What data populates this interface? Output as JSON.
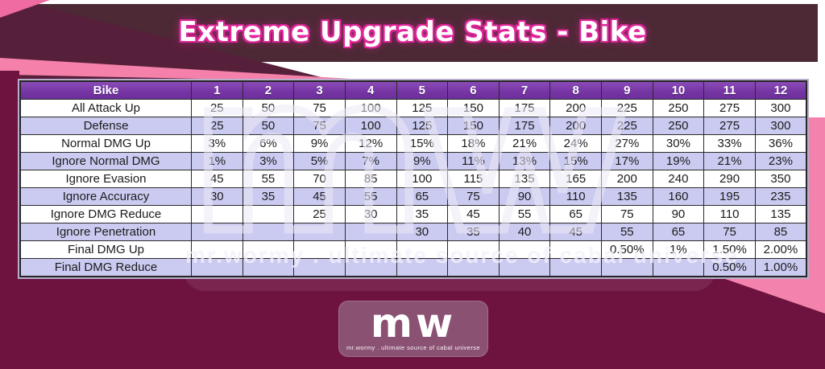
{
  "title": "Extreme Upgrade Stats - Bike",
  "table": {
    "corner_label": "Bike",
    "columns": [
      "1",
      "2",
      "3",
      "4",
      "5",
      "6",
      "7",
      "8",
      "9",
      "10",
      "11",
      "12"
    ],
    "rows": [
      {
        "label": "All Attack Up",
        "values": [
          "25",
          "50",
          "75",
          "100",
          "125",
          "150",
          "175",
          "200",
          "225",
          "250",
          "275",
          "300"
        ]
      },
      {
        "label": "Defense",
        "values": [
          "25",
          "50",
          "75",
          "100",
          "125",
          "150",
          "175",
          "200",
          "225",
          "250",
          "275",
          "300"
        ]
      },
      {
        "label": "Normal DMG Up",
        "values": [
          "3%",
          "6%",
          "9%",
          "12%",
          "15%",
          "18%",
          "21%",
          "24%",
          "27%",
          "30%",
          "33%",
          "36%"
        ]
      },
      {
        "label": "Ignore Normal DMG",
        "values": [
          "1%",
          "3%",
          "5%",
          "7%",
          "9%",
          "11%",
          "13%",
          "15%",
          "17%",
          "19%",
          "21%",
          "23%"
        ]
      },
      {
        "label": "Ignore Evasion",
        "values": [
          "45",
          "55",
          "70",
          "85",
          "100",
          "115",
          "135",
          "165",
          "200",
          "240",
          "290",
          "350"
        ]
      },
      {
        "label": "Ignore Accuracy",
        "values": [
          "30",
          "35",
          "45",
          "55",
          "65",
          "75",
          "90",
          "110",
          "135",
          "160",
          "195",
          "235"
        ]
      },
      {
        "label": "Ignore DMG Reduce",
        "values": [
          "",
          "",
          "25",
          "30",
          "35",
          "45",
          "55",
          "65",
          "75",
          "90",
          "110",
          "135"
        ]
      },
      {
        "label": "Ignore Penetration",
        "values": [
          "",
          "",
          "",
          "",
          "30",
          "35",
          "40",
          "45",
          "55",
          "65",
          "75",
          "85"
        ]
      },
      {
        "label": "Final DMG Up",
        "values": [
          "",
          "",
          "",
          "",
          "",
          "",
          "",
          "",
          "0.50%",
          "1%",
          "1.50%",
          "2.00%"
        ]
      },
      {
        "label": "Final DMG Reduce",
        "values": [
          "",
          "",
          "",
          "",
          "",
          "",
          "",
          "",
          "",
          "",
          "0.50%",
          "1.00%"
        ]
      }
    ]
  },
  "watermark": {
    "big_text": "mw",
    "line_text": "mr.wormy . ultimate source of cabal universe"
  },
  "logo": {
    "text": "mw",
    "subtext": "mr.wormy . ultimate source of cabal universe"
  },
  "colors": {
    "maroon": "#6E1340",
    "pink": "#F383AC",
    "title_band": "#4C2935",
    "header_purple": "#7B3DA8",
    "row_lavender": "#CBCBF2",
    "title_glow": "#E0269A"
  },
  "chart_data": {
    "type": "table",
    "title": "Extreme Upgrade Stats - Bike",
    "columns": [
      "Bike",
      "1",
      "2",
      "3",
      "4",
      "5",
      "6",
      "7",
      "8",
      "9",
      "10",
      "11",
      "12"
    ],
    "rows": [
      [
        "All Attack Up",
        "25",
        "50",
        "75",
        "100",
        "125",
        "150",
        "175",
        "200",
        "225",
        "250",
        "275",
        "300"
      ],
      [
        "Defense",
        "25",
        "50",
        "75",
        "100",
        "125",
        "150",
        "175",
        "200",
        "225",
        "250",
        "275",
        "300"
      ],
      [
        "Normal DMG Up",
        "3%",
        "6%",
        "9%",
        "12%",
        "15%",
        "18%",
        "21%",
        "24%",
        "27%",
        "30%",
        "33%",
        "36%"
      ],
      [
        "Ignore Normal DMG",
        "1%",
        "3%",
        "5%",
        "7%",
        "9%",
        "11%",
        "13%",
        "15%",
        "17%",
        "19%",
        "21%",
        "23%"
      ],
      [
        "Ignore Evasion",
        "45",
        "55",
        "70",
        "85",
        "100",
        "115",
        "135",
        "165",
        "200",
        "240",
        "290",
        "350"
      ],
      [
        "Ignore Accuracy",
        "30",
        "35",
        "45",
        "55",
        "65",
        "75",
        "90",
        "110",
        "135",
        "160",
        "195",
        "235"
      ],
      [
        "Ignore DMG Reduce",
        "",
        "",
        "25",
        "30",
        "35",
        "45",
        "55",
        "65",
        "75",
        "90",
        "110",
        "135"
      ],
      [
        "Ignore Penetration",
        "",
        "",
        "",
        "",
        "30",
        "35",
        "40",
        "45",
        "55",
        "65",
        "75",
        "85"
      ],
      [
        "Final DMG Up",
        "",
        "",
        "",
        "",
        "",
        "",
        "",
        "",
        "0.50%",
        "1%",
        "1.50%",
        "2.00%"
      ],
      [
        "Final DMG Reduce",
        "",
        "",
        "",
        "",
        "",
        "",
        "",
        "",
        "",
        "",
        "0.50%",
        "1.00%"
      ]
    ]
  }
}
